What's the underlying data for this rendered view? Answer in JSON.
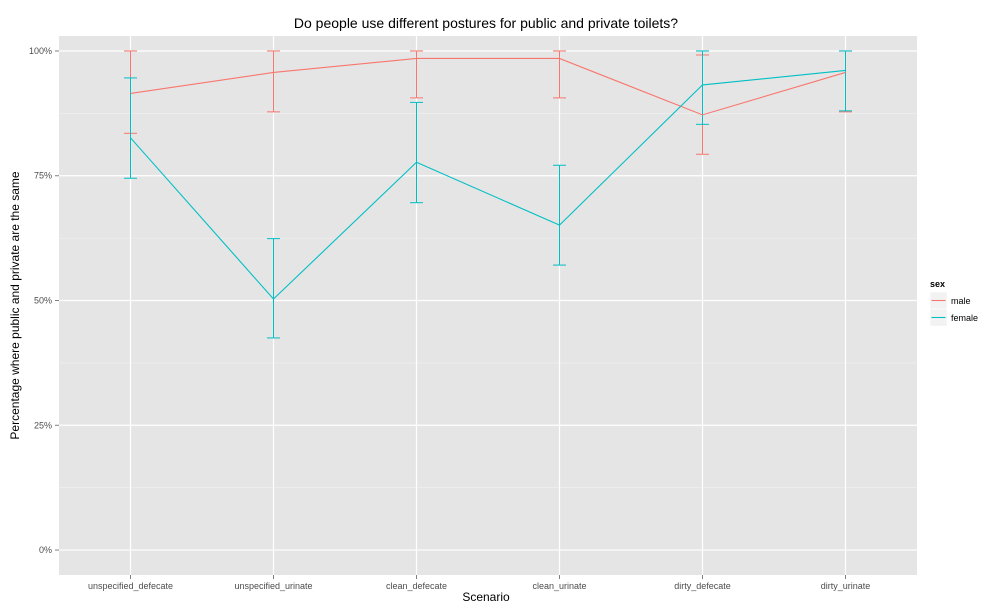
{
  "chart_data": {
    "type": "line",
    "title": "Do people use different postures for public and private toilets?",
    "xlabel": "Scenario",
    "ylabel": "Percentage where public and private are the same",
    "categories": [
      "unspecified_defecate",
      "unspecified_urinate",
      "clean_defecate",
      "clean_urinate",
      "dirty_defecate",
      "dirty_urinate"
    ],
    "ylim": [
      -0.05,
      1.03
    ],
    "yticks": [
      0,
      0.25,
      0.5,
      0.75,
      1.0
    ],
    "ytick_labels": [
      "0%",
      "25%",
      "50%",
      "75%",
      "100%"
    ],
    "grid": true,
    "legend": {
      "title": "sex",
      "position": "right"
    },
    "series": [
      {
        "name": "male",
        "color": "#F8766D",
        "values": [
          0.915,
          0.957,
          0.985,
          0.985,
          0.872,
          0.957
        ],
        "lower": [
          0.835,
          0.878,
          0.906,
          0.906,
          0.793,
          0.878
        ],
        "upper": [
          1.0,
          1.0,
          1.0,
          1.0,
          0.992,
          1.0
        ]
      },
      {
        "name": "female",
        "color": "#00BFC4",
        "values": [
          0.826,
          0.503,
          0.777,
          0.651,
          0.932,
          0.961
        ],
        "lower": [
          0.745,
          0.425,
          0.696,
          0.571,
          0.853,
          0.88
        ],
        "upper": [
          0.946,
          0.624,
          0.897,
          0.771,
          1.0,
          1.0
        ]
      }
    ]
  }
}
